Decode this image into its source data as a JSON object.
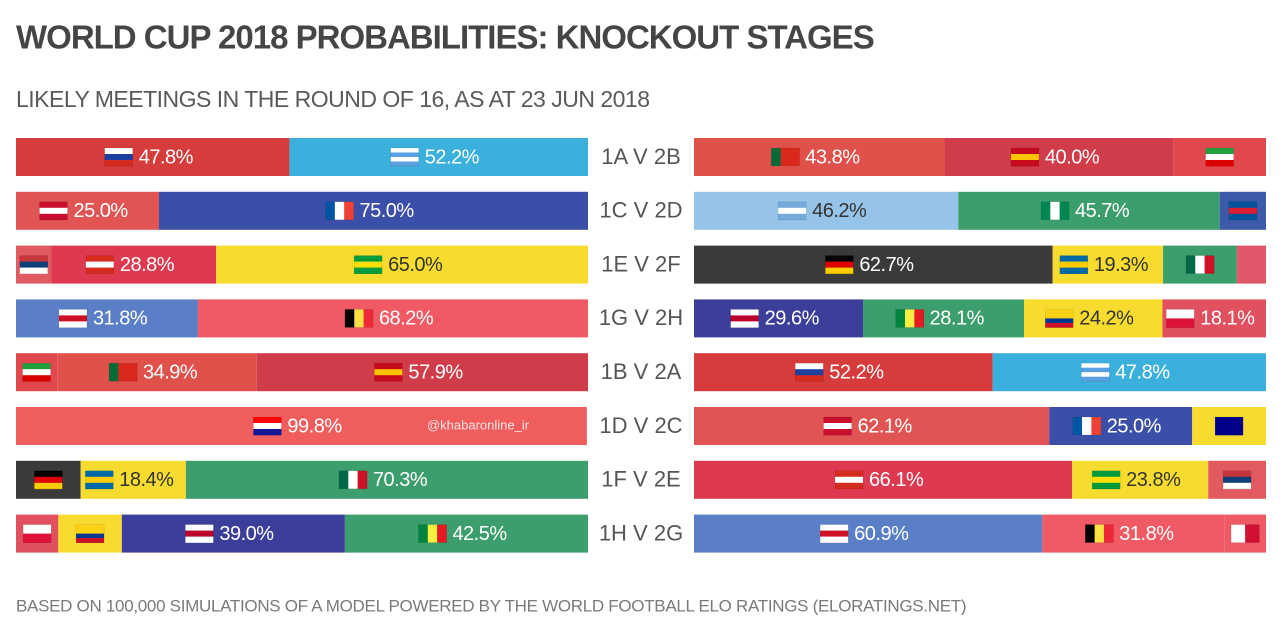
{
  "chart_data": {
    "type": "bar",
    "orientation": "horizontal",
    "stacked": true,
    "title": "WORLD CUP 2018 PROBABILITIES: KNOCKOUT STAGES",
    "subtitle": "LIKELY MEETINGS IN THE ROUND OF 16, AS AT 23 JUN 2018",
    "footnote": "BASED ON 100,000 SIMULATIONS OF A MODEL POWERED BY THE WORLD FOOTBALL ELO RATINGS (ELORATINGS.NET)",
    "watermark": "@khabaronline_ir",
    "xlim": [
      0,
      100
    ],
    "rows": [
      {
        "match": "1A V 2B",
        "left": [
          {
            "value": 47.8,
            "value_label": "47.8%",
            "color": "#d63c3c",
            "flag": [
              "#ffffff",
              "#1c3fa0",
              "#d52b1e"
            ],
            "flag_dir": "h"
          },
          {
            "value": 52.2,
            "value_label": "52.2%",
            "color": "#3cb0dd",
            "flag": [
              "#ffffff",
              "#5aa0e0",
              "#ffffff",
              "#5aa0e0"
            ],
            "flag_dir": "h"
          }
        ],
        "right": [
          {
            "value": 43.8,
            "value_label": "43.8%",
            "color": "#e0514c",
            "flag": [
              "#046a38",
              "#da291c",
              "#da291c"
            ],
            "flag_dir": "v"
          },
          {
            "value": 40.0,
            "value_label": "40.0%",
            "color": "#d13c4b",
            "flag": [
              "#c60b1e",
              "#ffc400",
              "#c60b1e"
            ],
            "flag_dir": "h"
          },
          {
            "value": 16.2,
            "color": "#e0484e",
            "flag": [
              "#239f40",
              "#ffffff",
              "#da0000"
            ],
            "flag_dir": "h"
          }
        ]
      },
      {
        "match": "1C V 2D",
        "left": [
          {
            "value": 25.0,
            "value_label": "25.0%",
            "color": "#e05454",
            "flag": [
              "#c8102e",
              "#ffffff",
              "#c8102e"
            ],
            "flag_dir": "h"
          },
          {
            "value": 75.0,
            "value_label": "75.0%",
            "color": "#3b4fa8",
            "flag": [
              "#0055a4",
              "#ffffff",
              "#ef4135"
            ],
            "flag_dir": "v"
          }
        ],
        "right": [
          {
            "value": 46.2,
            "value_label": "46.2%",
            "color": "#96c4e8",
            "flag": [
              "#75aadb",
              "#ffffff",
              "#75aadb"
            ],
            "flag_dir": "h"
          },
          {
            "value": 45.7,
            "value_label": "45.7%",
            "color": "#3d9e6d",
            "flag": [
              "#008751",
              "#ffffff",
              "#008751"
            ],
            "flag_dir": "v"
          },
          {
            "value": 8.1,
            "color": "#3c5aa8",
            "flag": [
              "#02529c",
              "#dc1e35",
              "#02529c"
            ],
            "flag_dir": "h"
          }
        ]
      },
      {
        "match": "1E V 2F",
        "left": [
          {
            "value": 6.2,
            "color": "#e05a60",
            "flag": [
              "#c6363c",
              "#0c4076",
              "#ffffff"
            ],
            "flag_dir": "h"
          },
          {
            "value": 28.8,
            "value_label": "28.8%",
            "color": "#dd3a52",
            "flag": [
              "#d52b1e",
              "#ffffff",
              "#d52b1e"
            ],
            "flag_dir": "h"
          },
          {
            "value": 65.0,
            "value_label": "65.0%",
            "color": "#f7dc2f",
            "flag": [
              "#009b3a",
              "#fedf00",
              "#009b3a"
            ],
            "flag_dir": "h"
          }
        ],
        "right": [
          {
            "value": 62.7,
            "value_label": "62.7%",
            "color": "#3a3a3a",
            "flag": [
              "#000000",
              "#dd0000",
              "#ffce00"
            ],
            "flag_dir": "h"
          },
          {
            "value": 19.3,
            "value_label": "19.3%",
            "color": "#f7dc2f",
            "flag": [
              "#006aa7",
              "#fecc00",
              "#006aa7"
            ],
            "flag_dir": "h"
          },
          {
            "value": 12.9,
            "color": "#3d9e6d",
            "flag": [
              "#006847",
              "#ffffff",
              "#ce1126"
            ],
            "flag_dir": "v"
          },
          {
            "value": 5.1,
            "color": "#e0566a"
          }
        ]
      },
      {
        "match": "1G V 2H",
        "left": [
          {
            "value": 31.8,
            "value_label": "31.8%",
            "color": "#5a7fc6",
            "flag": [
              "#ffffff",
              "#ce1124",
              "#ffffff"
            ],
            "flag_dir": "h"
          },
          {
            "value": 68.2,
            "value_label": "68.2%",
            "color": "#ef5a64",
            "flag": [
              "#000000",
              "#fae042",
              "#ed2939"
            ],
            "flag_dir": "v"
          }
        ],
        "right": [
          {
            "value": 29.6,
            "value_label": "29.6%",
            "color": "#3c3f9a",
            "flag": [
              "#ffffff",
              "#bc002d",
              "#ffffff"
            ],
            "flag_dir": "h"
          },
          {
            "value": 28.1,
            "value_label": "28.1%",
            "color": "#3d9e6d",
            "flag": [
              "#00853f",
              "#fdef42",
              "#e31b23"
            ],
            "flag_dir": "v"
          },
          {
            "value": 24.2,
            "value_label": "24.2%",
            "color": "#f7dc2f",
            "flag": [
              "#fcd116",
              "#fcd116",
              "#003893",
              "#ce1126"
            ],
            "flag_dir": "h"
          },
          {
            "value": 18.1,
            "value_label": "18.1%",
            "color": "#e0505e",
            "flag": [
              "#ffffff",
              "#dc143c"
            ],
            "flag_dir": "h"
          }
        ]
      },
      {
        "match": "1B V 2A",
        "left": [
          {
            "value": 7.2,
            "color": "#e0484e",
            "flag": [
              "#239f40",
              "#ffffff",
              "#da0000"
            ],
            "flag_dir": "h"
          },
          {
            "value": 34.9,
            "value_label": "34.9%",
            "color": "#e0514c",
            "flag": [
              "#046a38",
              "#da291c",
              "#da291c"
            ],
            "flag_dir": "v"
          },
          {
            "value": 57.9,
            "value_label": "57.9%",
            "color": "#d13c4b",
            "flag": [
              "#c60b1e",
              "#ffc400",
              "#c60b1e"
            ],
            "flag_dir": "h"
          }
        ],
        "right": [
          {
            "value": 52.2,
            "value_label": "52.2%",
            "color": "#d63c3c",
            "flag": [
              "#ffffff",
              "#1c3fa0",
              "#d52b1e"
            ],
            "flag_dir": "h"
          },
          {
            "value": 47.8,
            "value_label": "47.8%",
            "color": "#3cb0dd",
            "flag": [
              "#ffffff",
              "#5aa0e0",
              "#ffffff",
              "#5aa0e0"
            ],
            "flag_dir": "h"
          }
        ]
      },
      {
        "match": "1D V 2C",
        "left": [
          {
            "value": 99.8,
            "value_label": "99.8%",
            "color": "#ef5d5d",
            "flag": [
              "#ff0000",
              "#ffffff",
              "#171796"
            ],
            "flag_dir": "h"
          }
        ],
        "right": [
          {
            "value": 62.1,
            "value_label": "62.1%",
            "color": "#e05454",
            "flag": [
              "#c8102e",
              "#ffffff",
              "#c8102e"
            ],
            "flag_dir": "h"
          },
          {
            "value": 25.0,
            "value_label": "25.0%",
            "color": "#3b4fa8",
            "flag": [
              "#0055a4",
              "#ffffff",
              "#ef4135"
            ],
            "flag_dir": "v"
          },
          {
            "value": 12.9,
            "color": "#f7dc2f",
            "flag": [
              "#00008b",
              "#00008b"
            ],
            "flag_dir": "h"
          }
        ]
      },
      {
        "match": "1F V 2E",
        "left": [
          {
            "value": 11.3,
            "color": "#3a3a3a",
            "flag": [
              "#000000",
              "#dd0000",
              "#ffce00"
            ],
            "flag_dir": "h"
          },
          {
            "value": 18.4,
            "value_label": "18.4%",
            "color": "#f7dc2f",
            "flag": [
              "#006aa7",
              "#fecc00",
              "#006aa7"
            ],
            "flag_dir": "h"
          },
          {
            "value": 70.3,
            "value_label": "70.3%",
            "color": "#3d9e6d",
            "flag": [
              "#006847",
              "#ffffff",
              "#ce1126"
            ],
            "flag_dir": "v"
          }
        ],
        "right": [
          {
            "value": 66.1,
            "value_label": "66.1%",
            "color": "#dd3a52",
            "flag": [
              "#d52b1e",
              "#ffffff",
              "#d52b1e"
            ],
            "flag_dir": "h"
          },
          {
            "value": 23.8,
            "value_label": "23.8%",
            "color": "#f7dc2f",
            "flag": [
              "#009b3a",
              "#fedf00",
              "#009b3a"
            ],
            "flag_dir": "h"
          },
          {
            "value": 10.1,
            "color": "#e05a60",
            "flag": [
              "#c6363c",
              "#0c4076",
              "#ffffff"
            ],
            "flag_dir": "h"
          }
        ]
      },
      {
        "match": "1H V 2G",
        "left": [
          {
            "value": 7.4,
            "color": "#e0505e",
            "flag": [
              "#ffffff",
              "#dc143c"
            ],
            "flag_dir": "h"
          },
          {
            "value": 11.1,
            "color": "#f7dc2f",
            "flag": [
              "#fcd116",
              "#fcd116",
              "#003893",
              "#ce1126"
            ],
            "flag_dir": "h"
          },
          {
            "value": 39.0,
            "value_label": "39.0%",
            "color": "#3c3f9a",
            "flag": [
              "#ffffff",
              "#bc002d",
              "#ffffff"
            ],
            "flag_dir": "h"
          },
          {
            "value": 42.5,
            "value_label": "42.5%",
            "color": "#3d9e6d",
            "flag": [
              "#00853f",
              "#fdef42",
              "#e31b23"
            ],
            "flag_dir": "v"
          }
        ],
        "right": [
          {
            "value": 60.9,
            "value_label": "60.9%",
            "color": "#5a7fc6",
            "flag": [
              "#ffffff",
              "#ce1124",
              "#ffffff"
            ],
            "flag_dir": "h"
          },
          {
            "value": 31.8,
            "value_label": "31.8%",
            "color": "#ef5a64",
            "flag": [
              "#000000",
              "#fae042",
              "#ed2939"
            ],
            "flag_dir": "v"
          },
          {
            "value": 7.3,
            "color": "#ef5a64",
            "flag": [
              "#ffffff",
              "#d21034"
            ],
            "flag_dir": "v"
          }
        ]
      }
    ]
  }
}
